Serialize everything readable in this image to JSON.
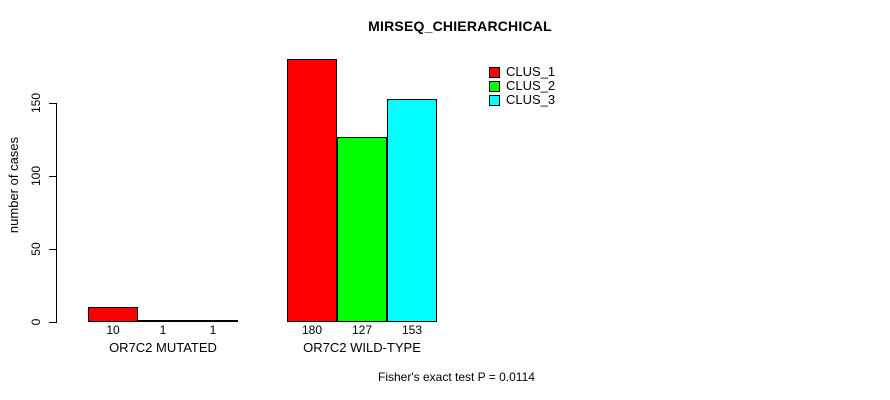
{
  "chart_data": {
    "type": "bar",
    "title": "MIRSEQ_CHIERARCHICAL",
    "ylabel": "number of cases",
    "xlabel": "",
    "categories": [
      "OR7C2 MUTATED",
      "OR7C2 WILD-TYPE"
    ],
    "series": [
      {
        "name": "CLUS_1",
        "color": "#ff0000",
        "values": [
          10,
          180
        ]
      },
      {
        "name": "CLUS_2",
        "color": "#00ff00",
        "values": [
          1,
          127
        ]
      },
      {
        "name": "CLUS_3",
        "color": "#00ffff",
        "values": [
          1,
          153
        ]
      }
    ],
    "yticks": [
      0,
      50,
      100,
      150
    ],
    "ylim": [
      0,
      180
    ],
    "grid": false,
    "legend_position": "top-right",
    "bar_value_labels": [
      [
        10,
        1,
        1
      ],
      [
        180,
        127,
        153
      ]
    ],
    "footnote": "Fisher's exact test P = 0.0114",
    "background": "#ffffff",
    "axis_color": "#000000"
  }
}
